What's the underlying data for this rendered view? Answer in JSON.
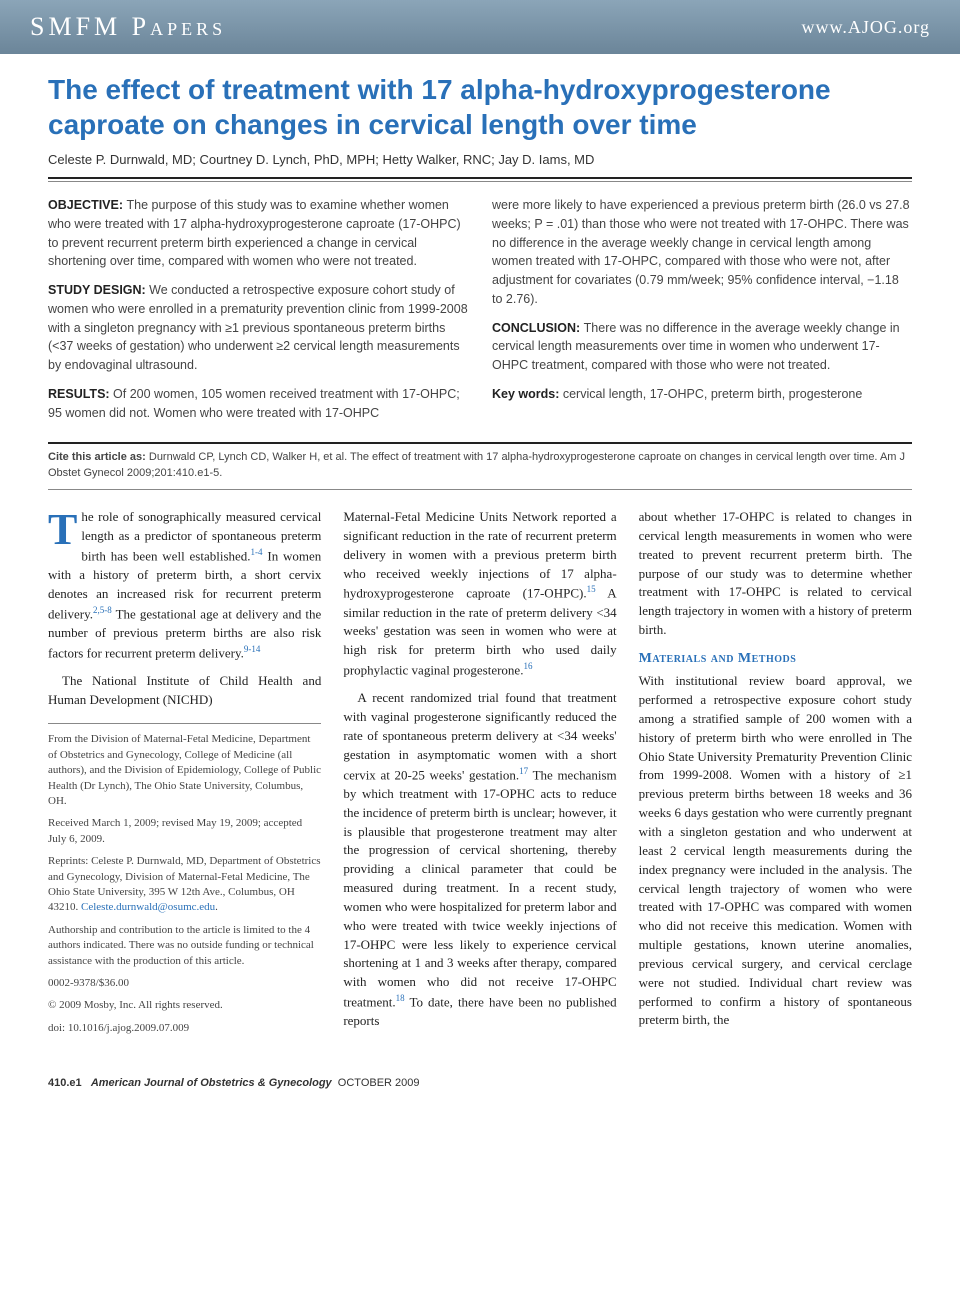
{
  "header": {
    "section": "SMFM Papers",
    "site": "www.AJOG.org"
  },
  "title": "The effect of treatment with 17 alpha-hydroxyprogesterone caproate on changes in cervical length over time",
  "authors": "Celeste P. Durnwald, MD; Courtney D. Lynch, PhD, MPH; Hetty Walker, RNC; Jay D. Iams, MD",
  "abstract": {
    "objective": "The purpose of this study was to examine whether women who were treated with 17 alpha-hydroxyprogesterone caproate (17-OHPC) to prevent recurrent preterm birth experienced a change in cervical shortening over time, compared with women who were not treated.",
    "design": "We conducted a retrospective exposure cohort study of women who were enrolled in a prematurity prevention clinic from 1999-2008 with a singleton pregnancy with ≥1 previous spontaneous preterm births (<37 weeks of gestation) who underwent ≥2 cervical length measurements by endovaginal ultrasound.",
    "results_a": "Of 200 women, 105 women received treatment with 17-OHPC; 95 women did not. Women who were treated with 17-OHPC",
    "results_b": "were more likely to have experienced a previous preterm birth (26.0 vs 27.8 weeks; P = .01) than those who were not treated with 17-OHPC. There was no difference in the average weekly change in cervical length among women treated with 17-OHPC, compared with those who were not, after adjustment for covariates (0.79 mm/week; 95% confidence interval, −1.18 to 2.76).",
    "conclusion": "There was no difference in the average weekly change in cervical length measurements over time in women who underwent 17-OHPC treatment, compared with those who were not treated.",
    "keywords": "cervical length, 17-OHPC, preterm birth, progesterone"
  },
  "citation": "Durnwald CP, Lynch CD, Walker H, et al. The effect of treatment with 17 alpha-hydroxyprogesterone caproate on changes in cervical length over time. Am J Obstet Gynecol 2009;201:410.e1-5.",
  "body": {
    "p1a": "he role of sonographically measured cervical length as a predictor of spontaneous preterm birth has been well established.",
    "p1b": " In women with a history of preterm birth, a short cervix denotes an increased risk for recurrent preterm delivery.",
    "p1c": " The gestational age at delivery and the number of previous preterm births are also risk factors for recurrent preterm delivery.",
    "p2": "The National Institute of Child Health and Human Development (NICHD)",
    "p3a": "Maternal-Fetal Medicine Units Network reported a significant reduction in the rate of recurrent preterm delivery in women with a previous preterm birth who received weekly injections of 17 alpha-hydroxyprogesterone caproate (17-OHPC).",
    "p3b": " A similar reduction in the rate of preterm delivery <34 weeks' gestation was seen in women who were at high risk for preterm birth who used daily prophylactic vaginal progesterone.",
    "p4a": "A recent randomized trial found that treatment with vaginal progesterone significantly reduced the rate of spontaneous preterm delivery at <34 weeks' gestation in asymptomatic women with a short cervix at 20-25 weeks' gestation.",
    "p4b": " The mechanism by which treatment with 17-OPHC acts to reduce the incidence of preterm birth is unclear; however, it is plausible that progesterone treatment may alter the progression of cervical shortening, thereby providing a clinical parameter that could be measured during treatment. In a recent study, women who were hospitalized for preterm labor and who were treated with twice weekly injections of 17-OHPC were less likely to experience cervical shortening at 1 and 3 weeks after therapy, compared with women who did not receive 17-OHPC treatment.",
    "p4c": " To date, there have been no published reports",
    "p5": "about whether 17-OHPC is related to changes in cervical length measurements in women who were treated to prevent recurrent preterm birth. The purpose of our study was to determine whether treatment with 17-OHPC is related to cervical length trajectory in women with a history of preterm birth.",
    "methods_heading": "Materials and Methods",
    "p6": "With institutional review board approval, we performed a retrospective exposure cohort study among a stratified sample of 200 women with a history of preterm birth who were enrolled in The Ohio State University Prematurity Prevention Clinic from 1999-2008. Women with a history of ≥1 previous preterm births between 18 weeks and 36 weeks 6 days gestation who were currently pregnant with a singleton gestation and who underwent at least 2 cervical length measurements during the index pregnancy were included in the analysis. The cervical length trajectory of women who were treated with 17-OPHC was compared with women who did not receive this medication. Women with multiple gestations, known uterine anomalies, previous cervical surgery, and cervical cerclage were not studied. Individual chart review was performed to confirm a history of spontaneous preterm birth, the"
  },
  "affiliations": {
    "from": "From the Division of Maternal-Fetal Medicine, Department of Obstetrics and Gynecology, College of Medicine (all authors), and the Division of Epidemiology, College of Public Health (Dr Lynch), The Ohio State University, Columbus, OH.",
    "dates": "Received March 1, 2009; revised May 19, 2009; accepted July 6, 2009.",
    "reprints": "Reprints: Celeste P. Durnwald, MD, Department of Obstetrics and Gynecology, Division of Maternal-Fetal Medicine, The Ohio State University, 395 W 12th Ave., Columbus, OH 43210.",
    "email": "Celeste.durnwald@osumc.edu",
    "authorship": "Authorship and contribution to the article is limited to the 4 authors indicated. There was no outside funding or technical assistance with the production of this article.",
    "issn": "0002-9378/$36.00",
    "copyright": "© 2009 Mosby, Inc. All rights reserved.",
    "doi": "doi: 10.1016/j.ajog.2009.07.009"
  },
  "refs": {
    "r1": "1-4",
    "r2": "2,5-8",
    "r3": "9-14",
    "r4": "15",
    "r5": "16",
    "r6": "17",
    "r7": "18"
  },
  "footer": {
    "page": "410.e1",
    "journal": "American Journal of Obstetrics & Gynecology",
    "date": "OCTOBER 2009"
  },
  "colors": {
    "accent": "#2970b8",
    "header_bg_top": "#8ba5b8",
    "header_bg_bottom": "#6b8599"
  }
}
